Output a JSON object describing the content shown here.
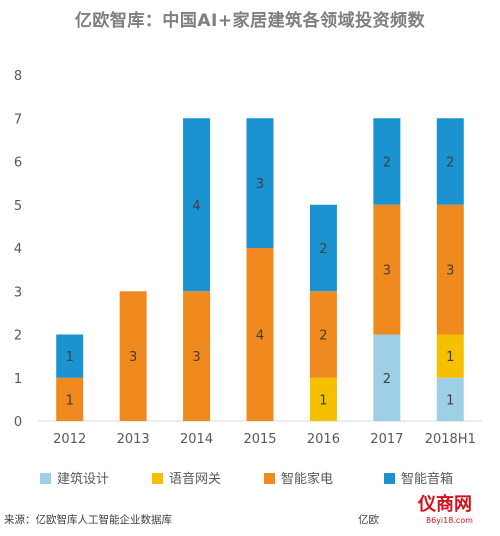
{
  "chart_data": {
    "type": "bar",
    "stacked": true,
    "title": "亿欧智库：中国AI+家居建筑各领域投资频数",
    "categories": [
      "2012",
      "2013",
      "2014",
      "2015",
      "2016",
      "2017",
      "2018H1"
    ],
    "series": [
      {
        "name": "建筑设计",
        "color": "#9dcfe6",
        "values": [
          0,
          0,
          0,
          0,
          0,
          2,
          1
        ]
      },
      {
        "name": "语音网关",
        "color": "#f5c000",
        "values": [
          0,
          0,
          0,
          0,
          1,
          0,
          1
        ]
      },
      {
        "name": "智能家电",
        "color": "#f08a1e",
        "values": [
          1,
          3,
          3,
          4,
          2,
          3,
          3
        ]
      },
      {
        "name": "智能音箱",
        "color": "#1a93d0",
        "values": [
          1,
          0,
          4,
          3,
          2,
          2,
          2
        ]
      }
    ],
    "ylim": [
      0,
      8
    ],
    "yticks": [
      0,
      1,
      2,
      3,
      4,
      5,
      6,
      7,
      8
    ],
    "grid": false,
    "legend": "bottom"
  },
  "footer": {
    "source": "来源：亿欧智库人工智能企业数据库",
    "watermark": "亿欧"
  },
  "logo": {
    "text": "仪商网",
    "url": "86yi18.com"
  }
}
